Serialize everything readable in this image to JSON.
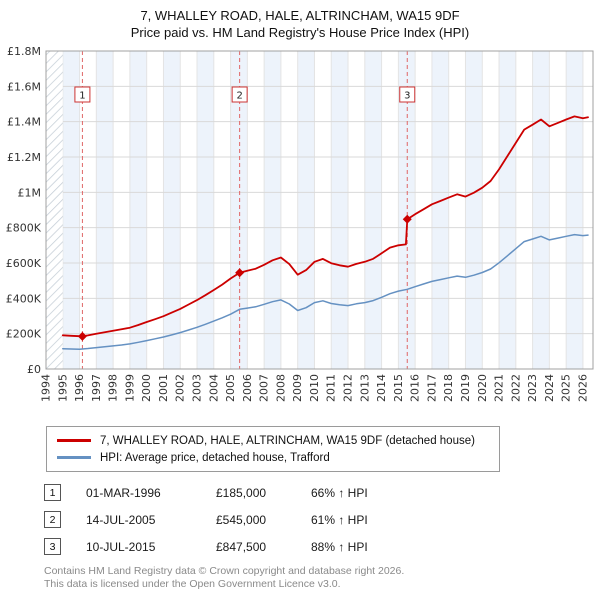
{
  "colors": {
    "property": "#cc0000",
    "hpi": "#6591c2",
    "sale_line": "#e06666",
    "band": "#edf3fb",
    "grid": "#d9d9d9",
    "grid_v": "#e4e4e4",
    "hatch": "#c4cdd6",
    "plot_border": "#a0a0a0",
    "marker_box": "#cc3333"
  },
  "chart_data": {
    "type": "line",
    "title": "7, WHALLEY ROAD, HALE, ALTRINCHAM, WA15 9DF",
    "subtitle": "Price paid vs. HM Land Registry's House Price Index (HPI)",
    "xlabel": "",
    "ylabel": "",
    "x_range": [
      1994,
      2026.6
    ],
    "y_range": [
      0,
      1800000
    ],
    "hatch_until": 1995.0,
    "x_ticks": [
      1994,
      1995,
      1996,
      1997,
      1998,
      1999,
      2000,
      2001,
      2002,
      2003,
      2004,
      2005,
      2006,
      2007,
      2008,
      2009,
      2010,
      2011,
      2012,
      2013,
      2014,
      2015,
      2016,
      2017,
      2018,
      2019,
      2020,
      2021,
      2022,
      2023,
      2024,
      2025,
      2026
    ],
    "y_ticks": [
      {
        "v": 0,
        "label": "£0"
      },
      {
        "v": 200000,
        "label": "£200K"
      },
      {
        "v": 400000,
        "label": "£400K"
      },
      {
        "v": 600000,
        "label": "£600K"
      },
      {
        "v": 800000,
        "label": "£800K"
      },
      {
        "v": 1000000,
        "label": "£1M"
      },
      {
        "v": 1200000,
        "label": "£1.2M"
      },
      {
        "v": 1400000,
        "label": "£1.4M"
      },
      {
        "v": 1600000,
        "label": "£1.6M"
      },
      {
        "v": 1800000,
        "label": "£1.8M"
      }
    ],
    "series": [
      {
        "name": "HPI: Average price, detached house, Trafford",
        "color": "#6591c2",
        "points": [
          [
            1995.0,
            115000
          ],
          [
            1995.5,
            113000
          ],
          [
            1996.0,
            112000
          ],
          [
            1996.5,
            116000
          ],
          [
            1997.0,
            121000
          ],
          [
            1997.5,
            126000
          ],
          [
            1998.0,
            131000
          ],
          [
            1998.5,
            136000
          ],
          [
            1999.0,
            142000
          ],
          [
            1999.5,
            151000
          ],
          [
            2000.0,
            161000
          ],
          [
            2000.5,
            171000
          ],
          [
            2001.0,
            181000
          ],
          [
            2001.5,
            193000
          ],
          [
            2002.0,
            206000
          ],
          [
            2002.5,
            221000
          ],
          [
            2003.0,
            236000
          ],
          [
            2003.5,
            253000
          ],
          [
            2004.0,
            271000
          ],
          [
            2004.5,
            290000
          ],
          [
            2005.0,
            310000
          ],
          [
            2005.54,
            338000
          ],
          [
            2006.0,
            345000
          ],
          [
            2006.5,
            352000
          ],
          [
            2007.0,
            366000
          ],
          [
            2007.5,
            381000
          ],
          [
            2008.0,
            391000
          ],
          [
            2008.5,
            368000
          ],
          [
            2009.0,
            331000
          ],
          [
            2009.5,
            347000
          ],
          [
            2010.0,
            376000
          ],
          [
            2010.5,
            386000
          ],
          [
            2011.0,
            371000
          ],
          [
            2011.5,
            364000
          ],
          [
            2012.0,
            359000
          ],
          [
            2012.5,
            369000
          ],
          [
            2013.0,
            376000
          ],
          [
            2013.5,
            387000
          ],
          [
            2014.0,
            406000
          ],
          [
            2014.5,
            426000
          ],
          [
            2015.0,
            441000
          ],
          [
            2015.53,
            451000
          ],
          [
            2016.0,
            466000
          ],
          [
            2016.5,
            481000
          ],
          [
            2017.0,
            496000
          ],
          [
            2017.5,
            506000
          ],
          [
            2018.0,
            516000
          ],
          [
            2018.5,
            526000
          ],
          [
            2019.0,
            519000
          ],
          [
            2019.5,
            531000
          ],
          [
            2020.0,
            546000
          ],
          [
            2020.5,
            566000
          ],
          [
            2021.0,
            601000
          ],
          [
            2021.5,
            641000
          ],
          [
            2022.0,
            681000
          ],
          [
            2022.5,
            721000
          ],
          [
            2023.0,
            736000
          ],
          [
            2023.5,
            751000
          ],
          [
            2024.0,
            731000
          ],
          [
            2024.5,
            741000
          ],
          [
            2025.0,
            751000
          ],
          [
            2025.5,
            761000
          ],
          [
            2026.0,
            755000
          ],
          [
            2026.3,
            758000
          ]
        ]
      },
      {
        "name": "7, WHALLEY ROAD, HALE, ALTRINCHAM, WA15 9DF (detached house)",
        "color": "#cc0000",
        "points": [
          [
            1995.0,
            191000
          ],
          [
            1995.5,
            188000
          ],
          [
            1996.17,
            185000
          ],
          [
            1996.5,
            190000
          ],
          [
            1997.0,
            199000
          ],
          [
            1997.5,
            208000
          ],
          [
            1998.0,
            216000
          ],
          [
            1998.5,
            225000
          ],
          [
            1999.0,
            234000
          ],
          [
            1999.5,
            249000
          ],
          [
            2000.0,
            266000
          ],
          [
            2000.5,
            282000
          ],
          [
            2001.0,
            299000
          ],
          [
            2001.5,
            319000
          ],
          [
            2002.0,
            340000
          ],
          [
            2002.5,
            365000
          ],
          [
            2003.0,
            390000
          ],
          [
            2003.5,
            418000
          ],
          [
            2004.0,
            447000
          ],
          [
            2004.5,
            478000
          ],
          [
            2005.0,
            512000
          ],
          [
            2005.54,
            545000
          ],
          [
            2006.0,
            556000
          ],
          [
            2006.5,
            568000
          ],
          [
            2007.0,
            590000
          ],
          [
            2007.5,
            615000
          ],
          [
            2008.0,
            631000
          ],
          [
            2008.5,
            594000
          ],
          [
            2009.0,
            534000
          ],
          [
            2009.5,
            560000
          ],
          [
            2010.0,
            607000
          ],
          [
            2010.5,
            623000
          ],
          [
            2011.0,
            599000
          ],
          [
            2011.5,
            587000
          ],
          [
            2012.0,
            579000
          ],
          [
            2012.5,
            595000
          ],
          [
            2013.0,
            607000
          ],
          [
            2013.5,
            624000
          ],
          [
            2014.0,
            655000
          ],
          [
            2014.5,
            687000
          ],
          [
            2015.0,
            700000
          ],
          [
            2015.45,
            705000
          ],
          [
            2015.53,
            847500
          ],
          [
            2016.0,
            876000
          ],
          [
            2016.5,
            904000
          ],
          [
            2017.0,
            932000
          ],
          [
            2017.5,
            951000
          ],
          [
            2018.0,
            970000
          ],
          [
            2018.5,
            989000
          ],
          [
            2019.0,
            976000
          ],
          [
            2019.5,
            998000
          ],
          [
            2020.0,
            1026000
          ],
          [
            2020.5,
            1064000
          ],
          [
            2021.0,
            1130000
          ],
          [
            2021.5,
            1205000
          ],
          [
            2022.0,
            1280000
          ],
          [
            2022.5,
            1355000
          ],
          [
            2023.0,
            1383000
          ],
          [
            2023.5,
            1412000
          ],
          [
            2024.0,
            1374000
          ],
          [
            2024.5,
            1393000
          ],
          [
            2025.0,
            1412000
          ],
          [
            2025.5,
            1430000
          ],
          [
            2026.0,
            1419000
          ],
          [
            2026.3,
            1425000
          ]
        ]
      }
    ],
    "sales_markers": [
      {
        "n": "1",
        "x": 1996.17,
        "y": 185000
      },
      {
        "n": "2",
        "x": 2005.54,
        "y": 545000
      },
      {
        "n": "3",
        "x": 2015.53,
        "y": 847500
      }
    ]
  },
  "legend": [
    {
      "label": "7, WHALLEY ROAD, HALE, ALTRINCHAM, WA15 9DF (detached house)",
      "color": "#cc0000"
    },
    {
      "label": "HPI: Average price, detached house, Trafford",
      "color": "#6591c2"
    }
  ],
  "sales": [
    {
      "n": "1",
      "date": "01-MAR-1996",
      "price": "£185,000",
      "hpi": "66% ↑ HPI"
    },
    {
      "n": "2",
      "date": "14-JUL-2005",
      "price": "£545,000",
      "hpi": "61% ↑ HPI"
    },
    {
      "n": "3",
      "date": "10-JUL-2015",
      "price": "£847,500",
      "hpi": "88% ↑ HPI"
    }
  ],
  "footer": {
    "line1": "Contains HM Land Registry data © Crown copyright and database right 2026.",
    "line2": "This data is licensed under the Open Government Licence v3.0."
  }
}
